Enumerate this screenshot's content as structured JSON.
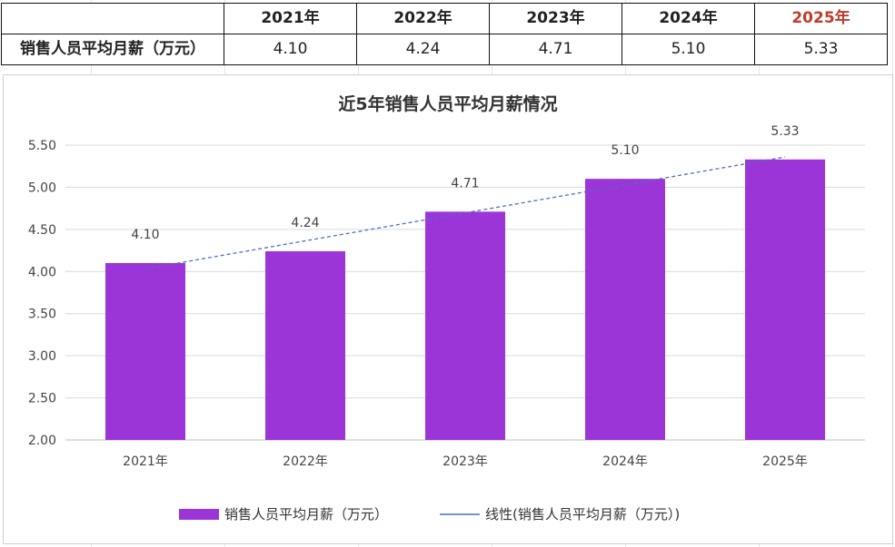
{
  "table": {
    "header": [
      "",
      "2021年",
      "2022年",
      "2023年",
      "2024年",
      "2025年"
    ],
    "row_label": "销售人员平均月薪（万元）",
    "values": [
      "4.10",
      "4.24",
      "4.71",
      "5.10",
      "5.33"
    ],
    "highlight_color": "#c0392b"
  },
  "chart_data": {
    "type": "bar",
    "title": "近5年销售人员平均月薪情况",
    "categories": [
      "2021年",
      "2022年",
      "2023年",
      "2024年",
      "2025年"
    ],
    "series": [
      {
        "name": "销售人员平均月薪（万元）",
        "values": [
          4.1,
          4.24,
          4.71,
          5.1,
          5.33
        ],
        "color": "#9b35d8"
      }
    ],
    "data_labels": [
      "4.10",
      "4.24",
      "4.71",
      "5.10",
      "5.33"
    ],
    "trendline": {
      "name": "线性(销售人员平均月薪（万元）)",
      "type": "linear",
      "style": "dashed",
      "color": "#4a6fc7"
    },
    "ylim": [
      2.0,
      5.5
    ],
    "yticks": [
      "2.00",
      "2.50",
      "3.00",
      "3.50",
      "4.00",
      "4.50",
      "5.00",
      "5.50"
    ],
    "grid": true,
    "legend": "bottom",
    "xlabel": "",
    "ylabel": ""
  }
}
